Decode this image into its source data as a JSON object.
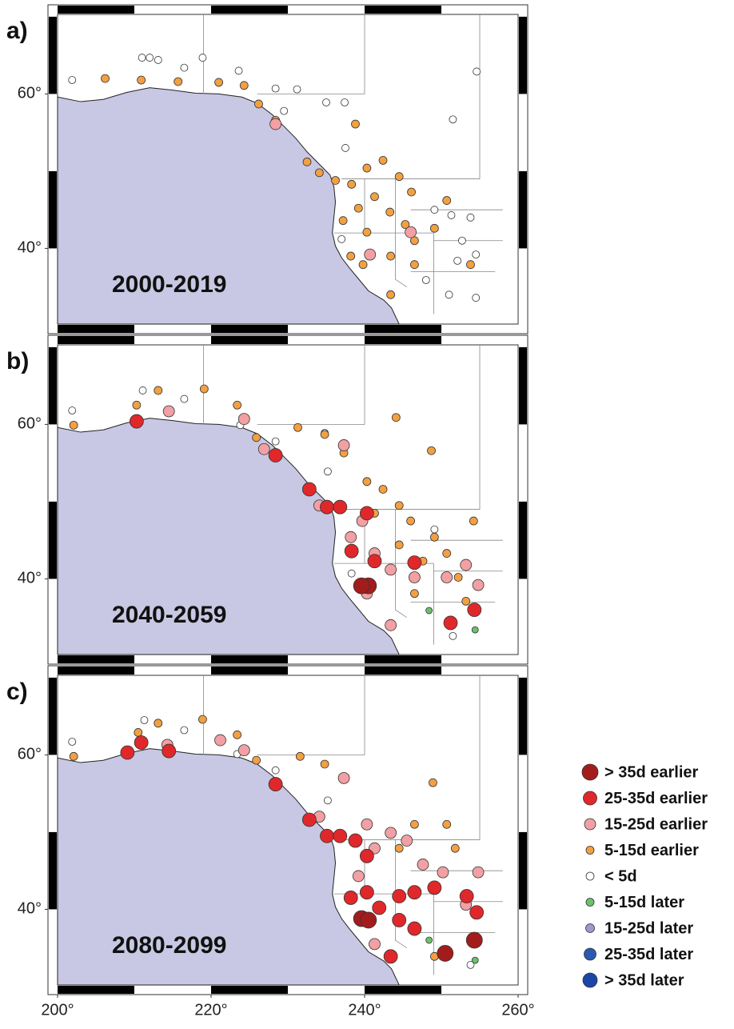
{
  "legend": {
    "entries": [
      {
        "label": "> 35d earlier",
        "color": "#a31c1c"
      },
      {
        "label": "25-35d earlier",
        "color": "#e0282a"
      },
      {
        "label": "15-25d earlier",
        "color": "#f2a0a4"
      },
      {
        "label": "5-15d earlier",
        "color": "#f2a042"
      },
      {
        "label": "< 5d",
        "color": "#ffffff"
      },
      {
        "label": "5-15d later",
        "color": "#6cc06c"
      },
      {
        "label": "15-25d later",
        "color": "#9a9ad0"
      },
      {
        "label": "25-35d later",
        "color": "#2a5ab0"
      },
      {
        "label": "> 35d later",
        "color": "#1a46a8"
      }
    ]
  },
  "chart_data": [
    {
      "type": "scatter",
      "label": "a)",
      "period": "2000-2019",
      "xlim": [
        200,
        260
      ],
      "ylim": [
        30.2,
        70.3
      ],
      "yticks": [
        {
          "value": 40,
          "label": "40°"
        },
        {
          "value": 60,
          "label": "60°"
        }
      ],
      "series": [
        {
          "entry": 4,
          "x": [
            201.9,
            211,
            212,
            213.1,
            216.5,
            218.9,
            223.6,
            228.4,
            231.2,
            229.5,
            235,
            237.4,
            251.5,
            237.5,
            254.6,
            249.1,
            251.3,
            253.8,
            252.7,
            252.1,
            254.5,
            237,
            251,
            254.5,
            248
          ],
          "y": [
            61.8,
            64.7,
            64.7,
            64.4,
            63.4,
            64.7,
            63,
            60.7,
            60.6,
            57.8,
            58.9,
            58.9,
            56.7,
            53,
            62.9,
            45,
            44.3,
            44,
            41,
            38.4,
            39.2,
            41.2,
            34,
            33.6,
            35.9
          ]
        },
        {
          "entry": 3,
          "x": [
            206.2,
            210.9,
            215.7,
            221,
            224.3,
            226.2,
            228.4,
            232.5,
            234.1,
            236.2,
            238.3,
            240.3,
            242.4,
            244.5,
            246.1,
            241.3,
            239.2,
            243.3,
            245.3,
            246.5,
            249.1,
            240.3,
            238.2,
            239.8,
            243.4,
            246.5,
            238.8,
            250.7,
            253.8,
            243.4,
            237.2
          ],
          "y": [
            62,
            61.8,
            61.6,
            61.5,
            61.1,
            58.7,
            56.6,
            51.2,
            49.8,
            48.8,
            48.3,
            50.4,
            51.4,
            49.3,
            47.3,
            46.7,
            45.2,
            44.7,
            43.1,
            41,
            42.6,
            42.1,
            39,
            37.9,
            39,
            37.9,
            56.1,
            46.2,
            37.9,
            34,
            43.6
          ]
        },
        {
          "entry": 2,
          "x": [
            228.4,
            246,
            240.7
          ],
          "y": [
            56.1,
            42.1,
            39.2
          ]
        }
      ]
    },
    {
      "type": "scatter",
      "label": "b)",
      "period": "2040-2059",
      "xlim": [
        200,
        260
      ],
      "ylim": [
        30.2,
        70.3
      ],
      "yticks": [
        {
          "value": 40,
          "label": "40°"
        },
        {
          "value": 60,
          "label": "60°"
        }
      ],
      "series": [
        {
          "entry": 4,
          "x": [
            201.9,
            211.1,
            216.5,
            223.8,
            228.4,
            235.2,
            238.3,
            251.5,
            249.1,
            234.8
          ],
          "y": [
            61.8,
            64.4,
            63.3,
            59.9,
            57.8,
            53.9,
            40.7,
            32.6,
            46.4,
            58.9
          ]
        },
        {
          "entry": 3,
          "x": [
            202.1,
            210.3,
            213.1,
            219.1,
            223.4,
            225.9,
            231.3,
            234.8,
            237.3,
            244.1,
            248.7,
            240.3,
            242.4,
            244.5,
            246,
            241.3,
            249.1,
            250.7,
            247.6,
            252.2,
            254.2,
            244.5,
            253.2,
            246.5
          ],
          "y": [
            59.9,
            62.5,
            64.4,
            64.6,
            62.5,
            58.3,
            59.6,
            58.7,
            56.3,
            60.9,
            56.6,
            52.6,
            51.6,
            49.5,
            47.5,
            48.5,
            45.4,
            43.3,
            42.3,
            40.2,
            47.5,
            44.4,
            37.1,
            38.1
          ]
        },
        {
          "entry": 2,
          "x": [
            214.5,
            224.3,
            237.3,
            226.9,
            234.1,
            238.2,
            241.3,
            243.4,
            246.5,
            250.7,
            253.2,
            240.3,
            243.4,
            254.8,
            239.7
          ],
          "y": [
            61.7,
            60.7,
            57.3,
            56.8,
            49.5,
            45.4,
            43.3,
            41.2,
            40.2,
            40.2,
            41.8,
            38.1,
            34,
            39.2,
            47.5
          ]
        },
        {
          "entry": 1,
          "x": [
            210.3,
            228.4,
            232.8,
            235.1,
            236.8,
            240.3,
            238.3,
            241.3,
            246.5,
            251.2,
            254.3
          ],
          "y": [
            60.4,
            56,
            51.6,
            49.3,
            49.3,
            48.5,
            43.6,
            42.3,
            42.1,
            34.3,
            36
          ]
        },
        {
          "entry": 0,
          "x": [
            240.5,
            239.6
          ],
          "y": [
            39.1,
            39.1
          ]
        },
        {
          "entry": 5,
          "x": [
            248.4,
            254.4
          ],
          "y": [
            35.9,
            33.4
          ]
        }
      ]
    },
    {
      "type": "scatter",
      "label": "c)",
      "period": "2080-2099",
      "xlim": [
        200,
        260
      ],
      "ylim": [
        30.2,
        70.3
      ],
      "xticks": [
        {
          "value": 200,
          "label": "200°"
        },
        {
          "value": 220,
          "label": "220°"
        },
        {
          "value": 240,
          "label": "240°"
        },
        {
          "value": 260,
          "label": "260°"
        }
      ],
      "yticks": [
        {
          "value": 40,
          "label": "40°"
        },
        {
          "value": 60,
          "label": "60°"
        }
      ],
      "series": [
        {
          "entry": 4,
          "x": [
            201.9,
            211.3,
            216.5,
            223.4,
            228.4,
            235.2,
            253.8
          ],
          "y": [
            61.7,
            64.5,
            63.2,
            60.1,
            58,
            54.1,
            32.8
          ]
        },
        {
          "entry": 3,
          "x": [
            202.1,
            210.5,
            213.1,
            218.9,
            223.4,
            225.9,
            231.6,
            234.8,
            248.9,
            250.7,
            251.8,
            244.5,
            249.1,
            246.5
          ],
          "y": [
            59.8,
            62.9,
            64.1,
            64.6,
            62.6,
            59.3,
            59.8,
            58.8,
            56.4,
            51,
            47.9,
            47.9,
            33.9,
            51
          ]
        },
        {
          "entry": 2,
          "x": [
            214.3,
            221.2,
            224.3,
            237.3,
            234.1,
            240.3,
            243.4,
            245.5,
            247.6,
            250.2,
            241.3,
            253.2,
            254.8,
            239.2,
            241.3
          ],
          "y": [
            61.3,
            61.9,
            60.6,
            57,
            52,
            51,
            49.9,
            48.9,
            45.8,
            44.8,
            47.9,
            40.6,
            44.8,
            44.3,
            35.5
          ]
        },
        {
          "entry": 1,
          "x": [
            209.1,
            210.9,
            214.5,
            228.4,
            232.8,
            235.1,
            236.8,
            238.8,
            240.3,
            240.3,
            241.9,
            244.5,
            246.5,
            249.1,
            244.5,
            246.5,
            243.4,
            253.3,
            254.6,
            238.2
          ],
          "y": [
            60.3,
            61.6,
            60.5,
            56.2,
            51.6,
            49.5,
            49.5,
            48.9,
            46.9,
            42.2,
            40.2,
            41.7,
            42.2,
            42.8,
            38.6,
            37.5,
            33.9,
            41.7,
            39.6,
            41.5
          ]
        },
        {
          "entry": 0,
          "x": [
            239.6,
            240.5,
            250.5,
            254.3
          ],
          "y": [
            38.8,
            38.6,
            34.3,
            36
          ]
        },
        {
          "entry": 5,
          "x": [
            248.4,
            254.4
          ],
          "y": [
            36,
            33.4
          ]
        }
      ]
    }
  ]
}
